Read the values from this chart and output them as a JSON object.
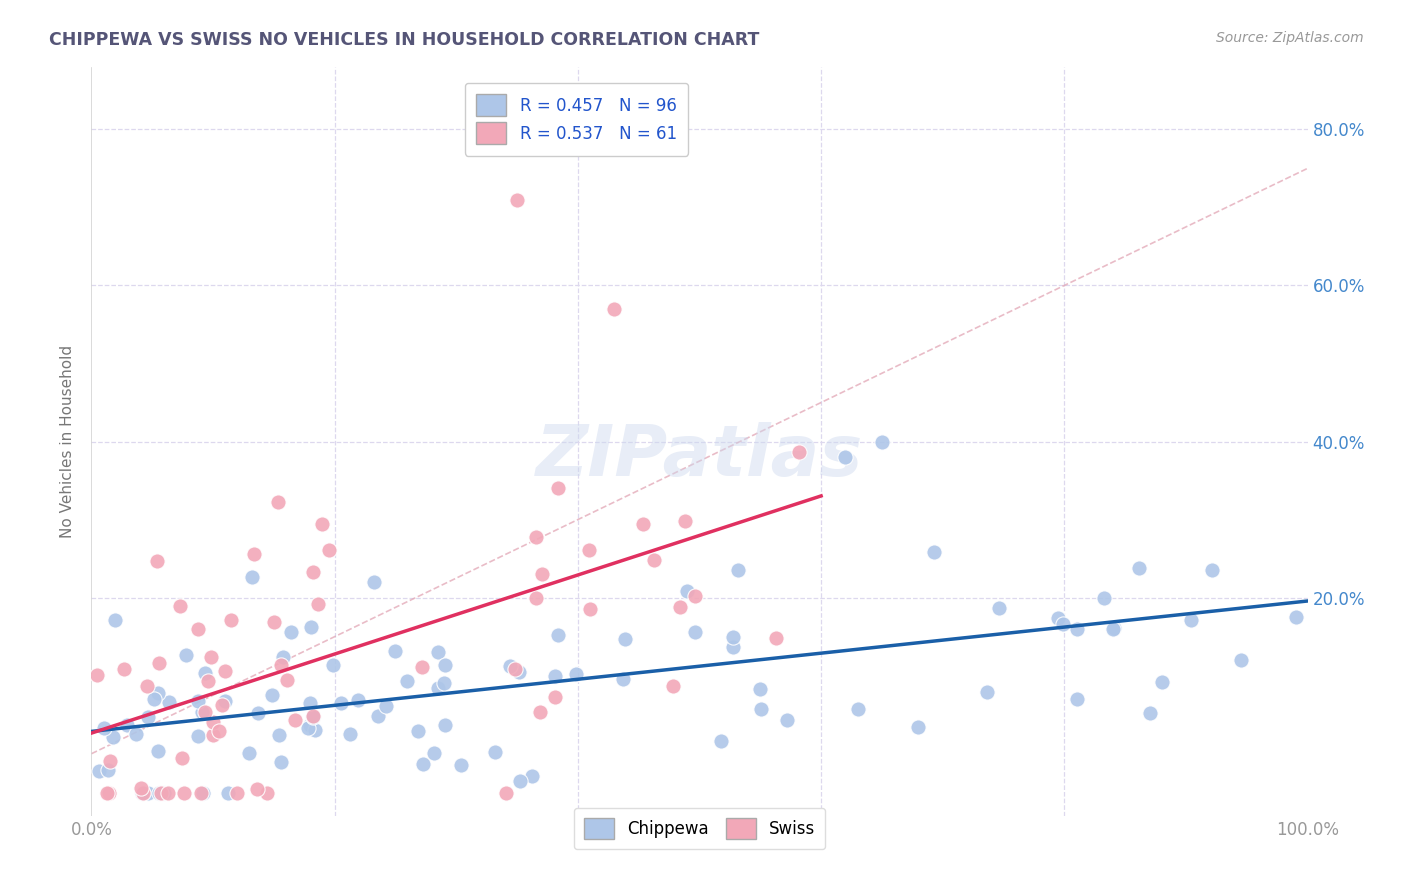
{
  "title": "CHIPPEWA VS SWISS NO VEHICLES IN HOUSEHOLD CORRELATION CHART",
  "source": "Source: ZipAtlas.com",
  "ylabel": "No Vehicles in Household",
  "chippewa_color": "#aec6e8",
  "swiss_color": "#f2a8b8",
  "chippewa_line_color": "#1a5fa8",
  "swiss_line_color": "#e03060",
  "diagonal_line_color": "#e0a0b0",
  "R_chippewa": 0.457,
  "N_chippewa": 96,
  "R_swiss": 0.537,
  "N_swiss": 61,
  "xlim": [
    0,
    100
  ],
  "ylim": [
    -8,
    88
  ],
  "background_color": "#ffffff",
  "grid_color": "#ddd8ee",
  "watermark": "ZIPatlas",
  "right_ytick_color": "#4488cc",
  "xtick_color": "#999999",
  "title_color": "#555577",
  "source_color": "#999999",
  "ylabel_color": "#777777"
}
